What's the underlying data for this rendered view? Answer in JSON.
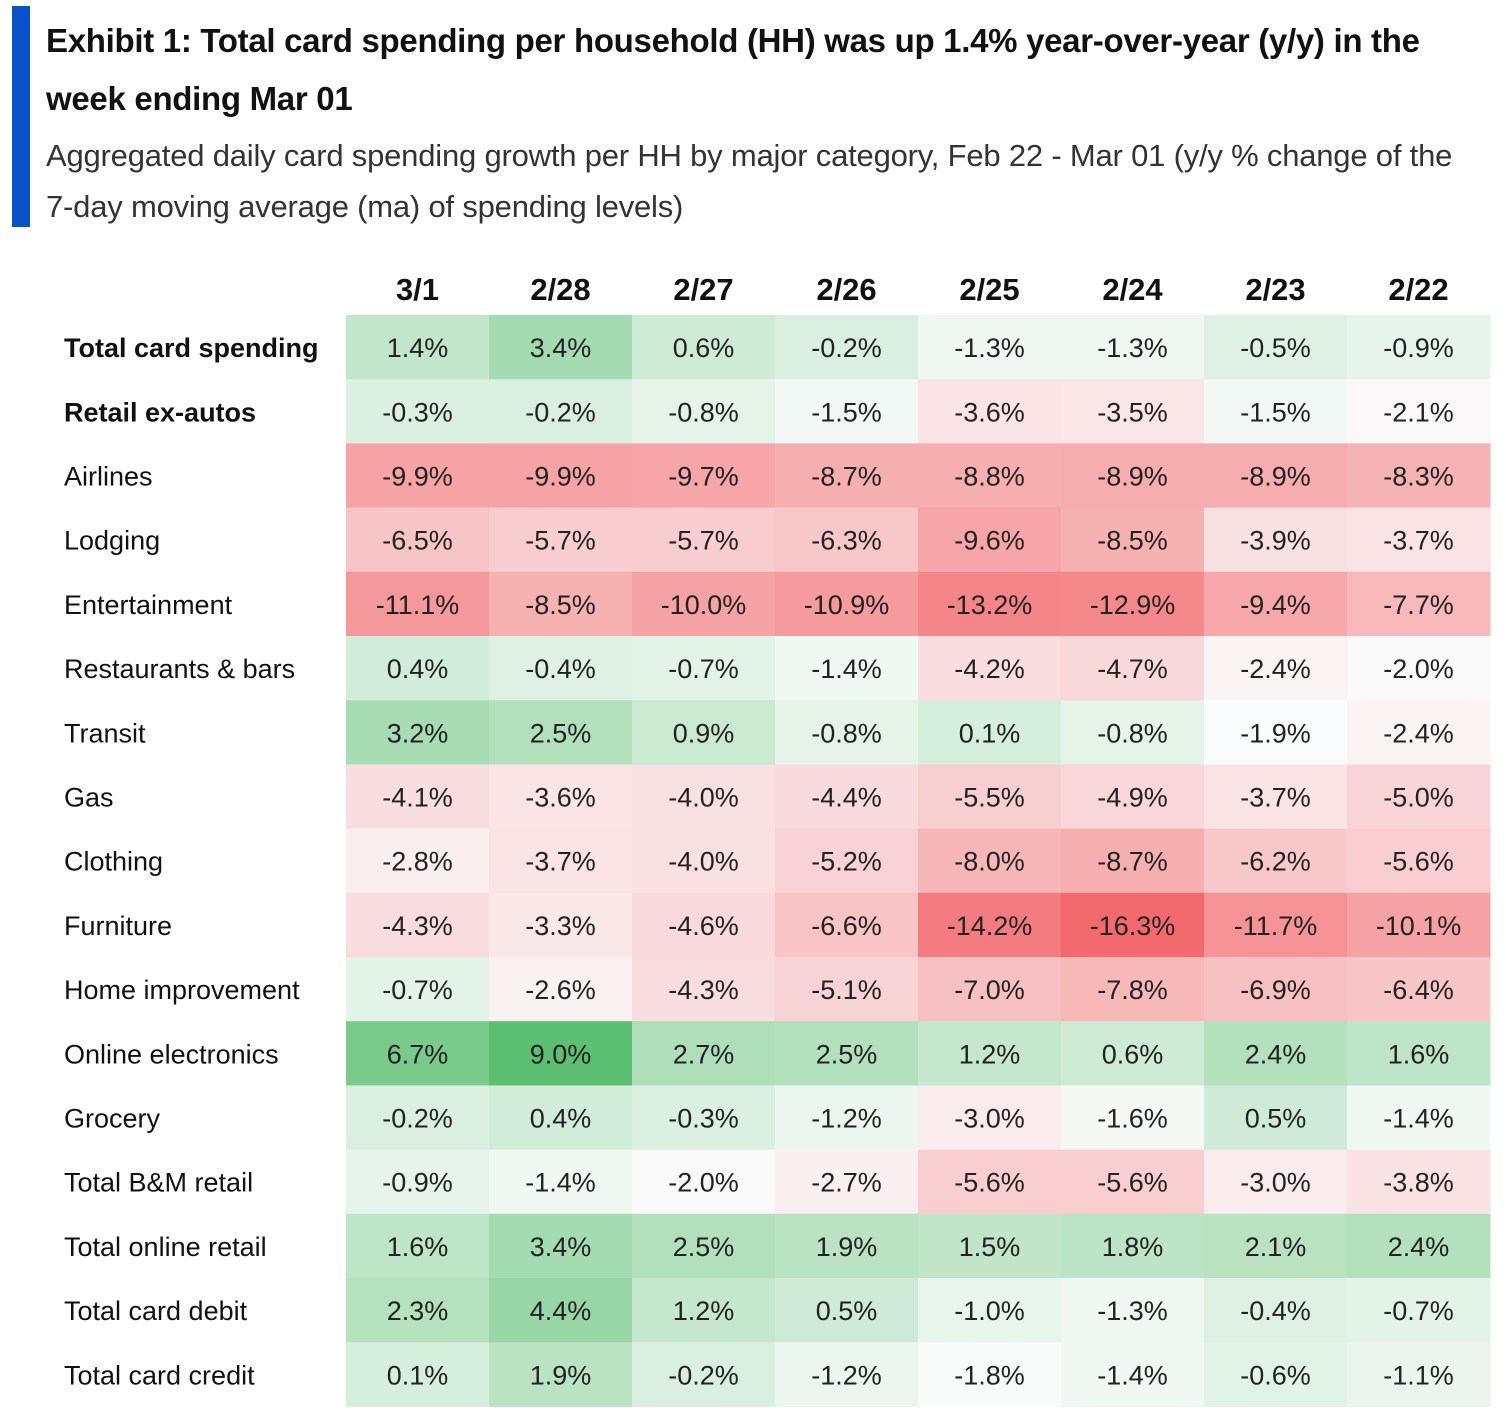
{
  "header": {
    "title": "Exhibit 1: Total card spending per household (HH) was up 1.4% year-over-year (y/y) in the week ending Mar 01",
    "subtitle": "Aggregated daily card spending growth per HH by major category, Feb 22 - Mar 01 (y/y % change of the 7-day moving average (ma) of spending levels)"
  },
  "colors": {
    "accent": "#0a52c9",
    "positive_max": "#5dbf72",
    "negative_max": "#f26a6e",
    "neutral": "#fbfcfd"
  },
  "chart_data": {
    "type": "heatmap",
    "title": "Exhibit 1: Total card spending per household (HH) was up 1.4% year-over-year (y/y) in the week ending Mar 01",
    "subtitle": "Aggregated daily card spending growth per HH by major category, Feb 22 - Mar 01 (y/y % change of the 7-day moving average (ma) of spending levels)",
    "unit": "%",
    "columns": [
      "3/1",
      "2/28",
      "2/27",
      "2/26",
      "2/25",
      "2/24",
      "2/23",
      "2/22"
    ],
    "rows": [
      {
        "label": "Total card spending",
        "bold": true,
        "values": [
          1.4,
          3.4,
          0.6,
          -0.2,
          -1.3,
          -1.3,
          -0.5,
          -0.9
        ]
      },
      {
        "label": "Retail ex-autos",
        "bold": true,
        "values": [
          -0.3,
          -0.2,
          -0.8,
          -1.5,
          -3.6,
          -3.5,
          -1.5,
          -2.1
        ]
      },
      {
        "label": "Airlines",
        "bold": false,
        "values": [
          -9.9,
          -9.9,
          -9.7,
          -8.7,
          -8.8,
          -8.9,
          -8.9,
          -8.3
        ]
      },
      {
        "label": "Lodging",
        "bold": false,
        "values": [
          -6.5,
          -5.7,
          -5.7,
          -6.3,
          -9.6,
          -8.5,
          -3.9,
          -3.7
        ]
      },
      {
        "label": "Entertainment",
        "bold": false,
        "values": [
          -11.1,
          -8.5,
          -10.0,
          -10.9,
          -13.2,
          -12.9,
          -9.4,
          -7.7
        ]
      },
      {
        "label": "Restaurants & bars",
        "bold": false,
        "values": [
          0.4,
          -0.4,
          -0.7,
          -1.4,
          -4.2,
          -4.7,
          -2.4,
          -2.0
        ]
      },
      {
        "label": "Transit",
        "bold": false,
        "values": [
          3.2,
          2.5,
          0.9,
          -0.8,
          0.1,
          -0.8,
          -1.9,
          -2.4
        ]
      },
      {
        "label": "Gas",
        "bold": false,
        "values": [
          -4.1,
          -3.6,
          -4.0,
          -4.4,
          -5.5,
          -4.9,
          -3.7,
          -5.0
        ]
      },
      {
        "label": "Clothing",
        "bold": false,
        "values": [
          -2.8,
          -3.7,
          -4.0,
          -5.2,
          -8.0,
          -8.7,
          -6.2,
          -5.6
        ]
      },
      {
        "label": "Furniture",
        "bold": false,
        "values": [
          -4.3,
          -3.3,
          -4.6,
          -6.6,
          -14.2,
          -16.3,
          -11.7,
          -10.1
        ]
      },
      {
        "label": "Home improvement",
        "bold": false,
        "values": [
          -0.7,
          -2.6,
          -4.3,
          -5.1,
          -7.0,
          -7.8,
          -6.9,
          -6.4
        ]
      },
      {
        "label": "Online electronics",
        "bold": false,
        "values": [
          6.7,
          9.0,
          2.7,
          2.5,
          1.2,
          0.6,
          2.4,
          1.6
        ]
      },
      {
        "label": "Grocery",
        "bold": false,
        "values": [
          -0.2,
          0.4,
          -0.3,
          -1.2,
          -3.0,
          -1.6,
          0.5,
          -1.4
        ]
      },
      {
        "label": "Total B&M retail",
        "bold": false,
        "values": [
          -0.9,
          -1.4,
          -2.0,
          -2.7,
          -5.6,
          -5.6,
          -3.0,
          -3.8
        ]
      },
      {
        "label": "Total online retail",
        "bold": false,
        "values": [
          1.6,
          3.4,
          2.5,
          1.9,
          1.5,
          1.8,
          2.1,
          2.4
        ]
      },
      {
        "label": "Total card debit",
        "bold": false,
        "values": [
          2.3,
          4.4,
          1.2,
          0.5,
          -1.0,
          -1.3,
          -0.4,
          -0.7
        ]
      },
      {
        "label": "Total card credit",
        "bold": false,
        "values": [
          0.1,
          1.9,
          -0.2,
          -1.2,
          -1.8,
          -1.4,
          -0.6,
          -1.1
        ]
      }
    ]
  }
}
